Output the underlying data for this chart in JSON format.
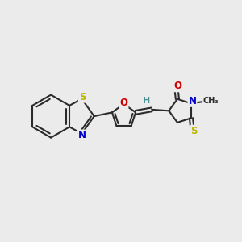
{
  "bg_color": "#ebebeb",
  "bond_color": "#2b2b2b",
  "bond_width": 1.5,
  "atom_colors": {
    "S": "#b8b800",
    "N": "#0000cc",
    "O": "#cc0000",
    "H": "#4a9090",
    "C": "#2b2b2b"
  },
  "figsize": [
    3.0,
    3.0
  ],
  "dpi": 100
}
